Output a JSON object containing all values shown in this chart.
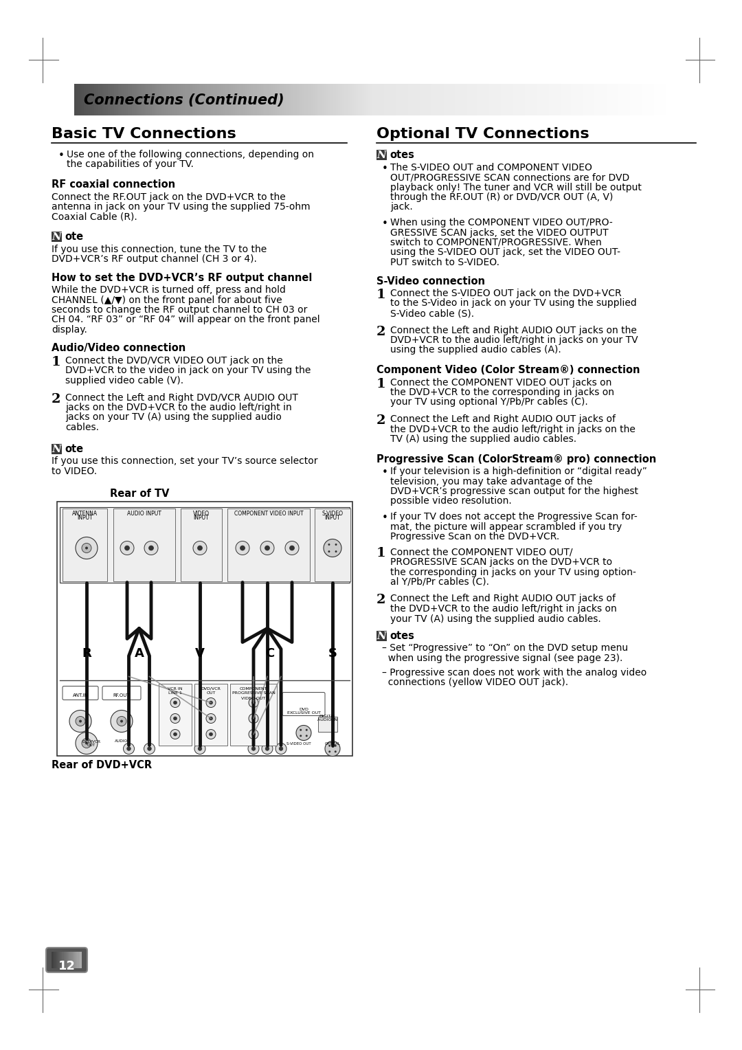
{
  "page_bg": "#ffffff",
  "header_text": "Connections (Continued)",
  "left_title": "Basic TV Connections",
  "right_title": "Optional TV Connections",
  "page_number": "12",
  "left_content": [
    {
      "type": "bullet",
      "text": "Use one of the following connections, depending on\nthe capabilities of your TV."
    },
    {
      "type": "subhead",
      "text": "RF coaxial connection"
    },
    {
      "type": "body",
      "text": "Connect the RF.OUT jack on the DVD+VCR to the\nantenna in jack on your TV using the supplied 75-ohm\nCoaxial Cable (R)."
    },
    {
      "type": "note_head",
      "text": "ote"
    },
    {
      "type": "body",
      "text": "If you use this connection, tune the TV to the\nDVD+VCR’s RF output channel (CH 3 or 4)."
    },
    {
      "type": "subhead",
      "text": "How to set the DVD+VCR’s RF output channel"
    },
    {
      "type": "body",
      "text": "While the DVD+VCR is turned off, press and hold\nCHANNEL (▲/▼) on the front panel for about five\nseconds to change the RF output channel to CH 03 or\nCH 04. “RF 03” or “RF 04” will appear on the front panel\ndisplay."
    },
    {
      "type": "subhead",
      "text": "Audio/Video connection"
    },
    {
      "type": "numbered",
      "num": "1",
      "text": "Connect the DVD/VCR VIDEO OUT jack on the\nDVD+VCR to the video in jack on your TV using the\nsupplied video cable (V)."
    },
    {
      "type": "numbered",
      "num": "2",
      "text": "Connect the Left and Right DVD/VCR AUDIO OUT\njacks on the DVD+VCR to the audio left/right in\njacks on your TV (A) using the supplied audio\ncables."
    },
    {
      "type": "note_head",
      "text": "ote"
    },
    {
      "type": "body",
      "text": "If you use this connection, set your TV’s source selector\nto VIDEO."
    }
  ],
  "right_content": [
    {
      "type": "notes_head",
      "text": "otes"
    },
    {
      "type": "bullet",
      "text": "The S-VIDEO OUT and COMPONENT VIDEO\nOUT/PROGRESSIVE SCAN connections are for DVD\nplayback only! The tuner and VCR will still be output\nthrough the RF.OUT (R) or DVD/VCR OUT (A, V)\njack."
    },
    {
      "type": "bullet",
      "text": "When using the COMPONENT VIDEO OUT/PRO-\nGRESSIVE SCAN jacks, set the VIDEO OUTPUT\nswitch to COMPONENT/PROGRESSIVE. When\nusing the S-VIDEO OUT jack, set the VIDEO OUT-\nPUT switch to S-VIDEO."
    },
    {
      "type": "subhead",
      "text": "S-Video connection"
    },
    {
      "type": "numbered",
      "num": "1",
      "text": "Connect the S-VIDEO OUT jack on the DVD+VCR\nto the S-Video in jack on your TV using the supplied\nS-Video cable (S)."
    },
    {
      "type": "numbered",
      "num": "2",
      "text": "Connect the Left and Right AUDIO OUT jacks on the\nDVD+VCR to the audio left/right in jacks on your TV\nusing the supplied audio cables (A)."
    },
    {
      "type": "subhead",
      "text": "Component Video (Color Stream®) connection"
    },
    {
      "type": "numbered",
      "num": "1",
      "text": "Connect the COMPONENT VIDEO OUT jacks on\nthe DVD+VCR to the corresponding in jacks on\nyour TV using optional Y/Pb/Pr cables (C)."
    },
    {
      "type": "numbered",
      "num": "2",
      "text": "Connect the Left and Right AUDIO OUT jacks of\nthe DVD+VCR to the audio left/right in jacks on the\nTV (A) using the supplied audio cables."
    },
    {
      "type": "subhead",
      "text": "Progressive Scan (ColorStream® pro) connection"
    },
    {
      "type": "bullet",
      "text": "If your television is a high-definition or “digital ready”\ntelevision, you may take advantage of the\nDVD+VCR’s progressive scan output for the highest\npossible video resolution."
    },
    {
      "type": "bullet",
      "text": "If your TV does not accept the Progressive Scan for-\nmat, the picture will appear scrambled if you try\nProgressive Scan on the DVD+VCR."
    },
    {
      "type": "numbered",
      "num": "1",
      "text": "Connect the COMPONENT VIDEO OUT/\nPROGRESSIVE SCAN jacks on the DVD+VCR to\nthe corresponding in jacks on your TV using option-\nal Y/Pb/Pr cables (C)."
    },
    {
      "type": "numbered",
      "num": "2",
      "text": "Connect the Left and Right AUDIO OUT jacks of\nthe DVD+VCR to the audio left/right in jacks on\nyour TV (A) using the supplied audio cables."
    },
    {
      "type": "notes_head2",
      "text": "otes"
    },
    {
      "type": "dash_bullet",
      "text": "– Set “Progressive” to “On” on the DVD setup menu\n  when using the progressive signal (see page 23)."
    },
    {
      "type": "dash_bullet",
      "text": "– Progressive scan does not work with the analog video\n  connections (yellow VIDEO OUT jack)."
    }
  ],
  "diagram": {
    "label_top": "Rear of TV",
    "label_bottom": "Rear of DVD+VCR",
    "letters": [
      "R",
      "A",
      "V",
      "C",
      "S"
    ],
    "letter_x": [
      105,
      185,
      255,
      340,
      430
    ],
    "tv_connectors_labels": [
      "ANTENNA\nINPUT",
      "AUDIO INPUT",
      "VIDEO\nINPUT",
      "COMPONENT VIDEO INPUT",
      "S-VIDEO\nINPUT"
    ],
    "tv_conn_x": [
      105,
      185,
      252,
      330,
      430
    ],
    "wire_colors": [
      "#111111",
      "#111111",
      "#111111",
      "#111111",
      "#111111",
      "#111111",
      "#111111",
      "#111111"
    ]
  }
}
